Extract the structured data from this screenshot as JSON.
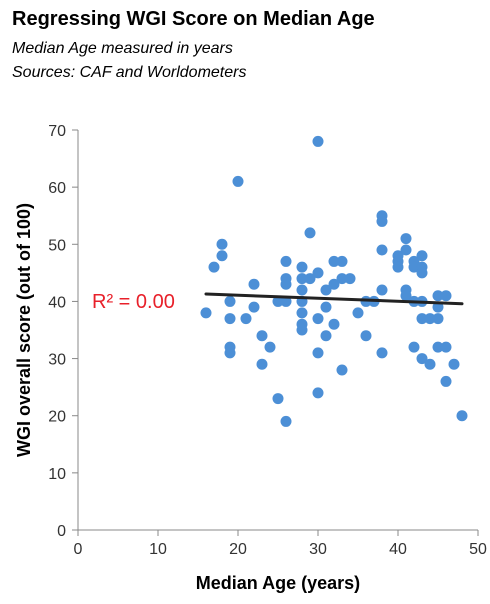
{
  "chart_data": {
    "type": "scatter",
    "title": "Regressing WGI Score on Median Age",
    "subtitle": [
      "Median Age measured in years",
      "Sources: CAF and Worldometers"
    ],
    "xlabel": "Median Age (years)",
    "ylabel": "WGI overall score (out of 100)",
    "xlim": [
      0,
      50
    ],
    "ylim": [
      0,
      70
    ],
    "xticks": [
      0,
      10,
      20,
      30,
      40,
      50
    ],
    "yticks": [
      0,
      10,
      20,
      30,
      40,
      50,
      60,
      70
    ],
    "grid": false,
    "point_color": "#4c8fd6",
    "trendline": {
      "x": [
        16,
        48
      ],
      "y": [
        41.3,
        39.6
      ],
      "color": "#222222"
    },
    "annotation": {
      "text": "R² = 0.00",
      "color": "#e8202a"
    },
    "points": [
      {
        "x": 16,
        "y": 38
      },
      {
        "x": 17,
        "y": 46
      },
      {
        "x": 18,
        "y": 48
      },
      {
        "x": 18,
        "y": 50
      },
      {
        "x": 19,
        "y": 40
      },
      {
        "x": 19,
        "y": 37
      },
      {
        "x": 19,
        "y": 32
      },
      {
        "x": 19,
        "y": 31
      },
      {
        "x": 20,
        "y": 61
      },
      {
        "x": 21,
        "y": 37
      },
      {
        "x": 22,
        "y": 43
      },
      {
        "x": 22,
        "y": 39
      },
      {
        "x": 23,
        "y": 34
      },
      {
        "x": 23,
        "y": 29
      },
      {
        "x": 24,
        "y": 32
      },
      {
        "x": 25,
        "y": 40
      },
      {
        "x": 25,
        "y": 23
      },
      {
        "x": 26,
        "y": 47
      },
      {
        "x": 26,
        "y": 44
      },
      {
        "x": 26,
        "y": 43
      },
      {
        "x": 26,
        "y": 40
      },
      {
        "x": 26,
        "y": 19
      },
      {
        "x": 28,
        "y": 46
      },
      {
        "x": 28,
        "y": 44
      },
      {
        "x": 28,
        "y": 42
      },
      {
        "x": 28,
        "y": 40
      },
      {
        "x": 28,
        "y": 38
      },
      {
        "x": 28,
        "y": 36
      },
      {
        "x": 28,
        "y": 35
      },
      {
        "x": 29,
        "y": 52
      },
      {
        "x": 29,
        "y": 44
      },
      {
        "x": 30,
        "y": 68
      },
      {
        "x": 30,
        "y": 45
      },
      {
        "x": 30,
        "y": 37
      },
      {
        "x": 30,
        "y": 31
      },
      {
        "x": 30,
        "y": 24
      },
      {
        "x": 31,
        "y": 42
      },
      {
        "x": 31,
        "y": 39
      },
      {
        "x": 31,
        "y": 34
      },
      {
        "x": 32,
        "y": 47
      },
      {
        "x": 32,
        "y": 43
      },
      {
        "x": 32,
        "y": 36
      },
      {
        "x": 33,
        "y": 47
      },
      {
        "x": 33,
        "y": 44
      },
      {
        "x": 33,
        "y": 28
      },
      {
        "x": 34,
        "y": 44
      },
      {
        "x": 35,
        "y": 38
      },
      {
        "x": 36,
        "y": 40
      },
      {
        "x": 36,
        "y": 34
      },
      {
        "x": 37,
        "y": 40
      },
      {
        "x": 38,
        "y": 55
      },
      {
        "x": 38,
        "y": 54
      },
      {
        "x": 38,
        "y": 49
      },
      {
        "x": 38,
        "y": 42
      },
      {
        "x": 38,
        "y": 31
      },
      {
        "x": 40,
        "y": 48
      },
      {
        "x": 40,
        "y": 47
      },
      {
        "x": 40,
        "y": 46
      },
      {
        "x": 41,
        "y": 51
      },
      {
        "x": 41,
        "y": 49
      },
      {
        "x": 41,
        "y": 42
      },
      {
        "x": 41,
        "y": 41
      },
      {
        "x": 42,
        "y": 47
      },
      {
        "x": 42,
        "y": 46
      },
      {
        "x": 42,
        "y": 40
      },
      {
        "x": 42,
        "y": 32
      },
      {
        "x": 43,
        "y": 48
      },
      {
        "x": 43,
        "y": 46
      },
      {
        "x": 43,
        "y": 45
      },
      {
        "x": 43,
        "y": 40
      },
      {
        "x": 43,
        "y": 37
      },
      {
        "x": 43,
        "y": 30
      },
      {
        "x": 44,
        "y": 37
      },
      {
        "x": 44,
        "y": 29
      },
      {
        "x": 45,
        "y": 41
      },
      {
        "x": 45,
        "y": 39
      },
      {
        "x": 45,
        "y": 37
      },
      {
        "x": 45,
        "y": 32
      },
      {
        "x": 46,
        "y": 41
      },
      {
        "x": 46,
        "y": 32
      },
      {
        "x": 46,
        "y": 26
      },
      {
        "x": 47,
        "y": 29
      },
      {
        "x": 48,
        "y": 20
      }
    ]
  }
}
